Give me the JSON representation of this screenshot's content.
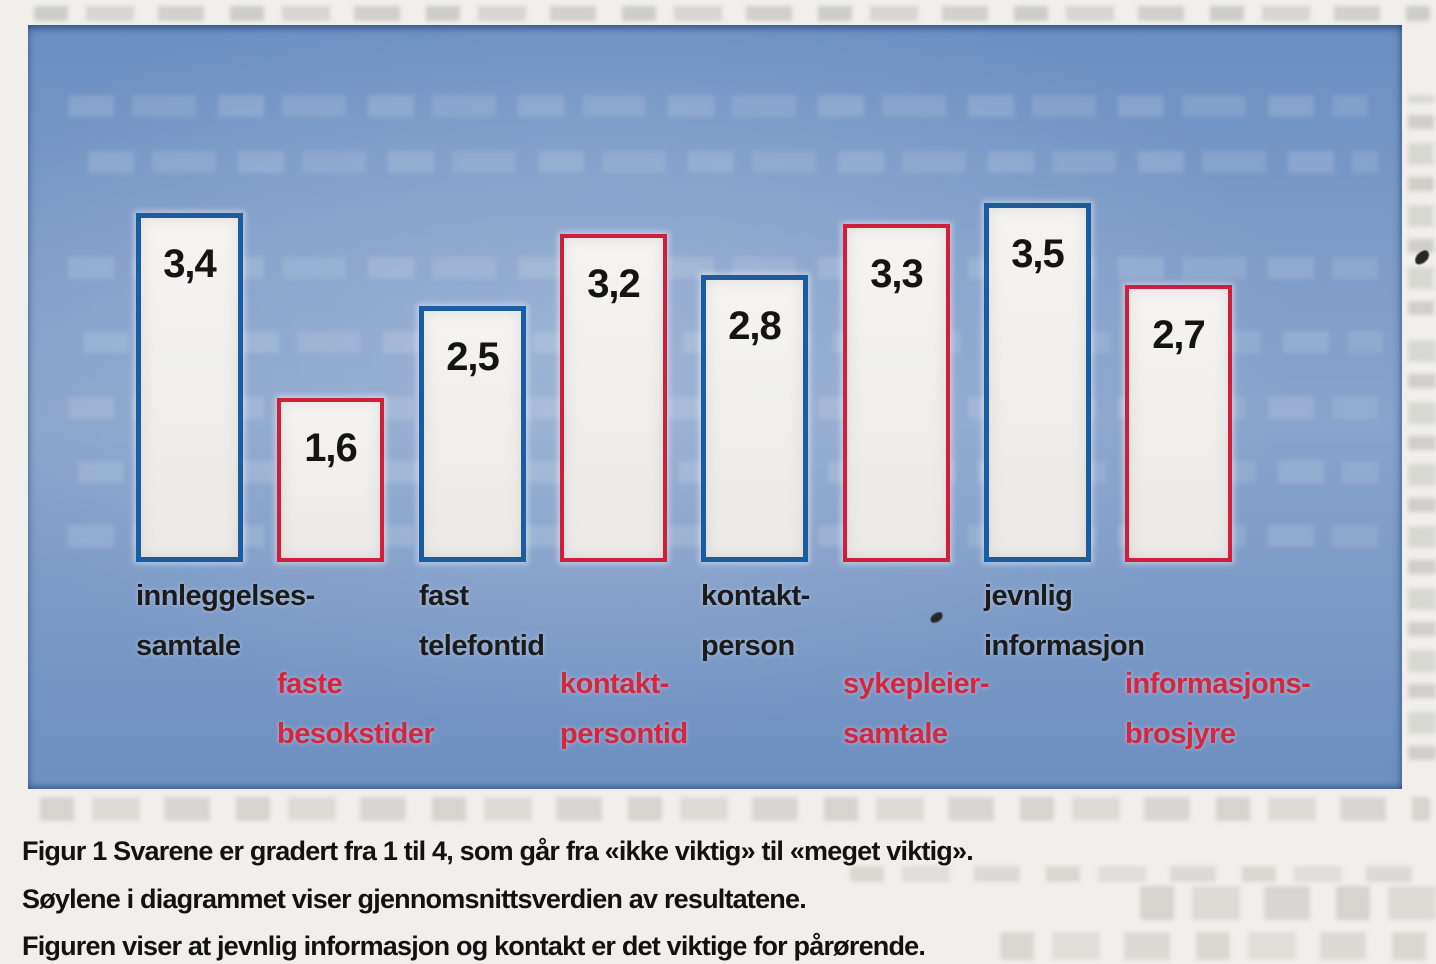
{
  "figure": {
    "colors": {
      "panel_background": "#7b99c6",
      "bar_fill": "#f1f0ed",
      "bar_border_blue": "#1b5ca1",
      "bar_border_red": "#d02039",
      "label_black": "#1b1b1b",
      "label_red": "#d6263e",
      "caption_text": "#121212"
    }
  },
  "chart_data": {
    "type": "bar",
    "title": "Figur 1",
    "ylim": [
      0,
      4
    ],
    "rating_scale": "1 til 4, fra «ikke viktig» til «meget viktig»",
    "grid": false,
    "axes_shown": false,
    "legend_position": "none",
    "categories": [
      "innleggelsessamtale",
      "faste besokstider",
      "fast telefontid",
      "kontaktpersontid",
      "kontaktperson",
      "sykepleiersamtale",
      "jevnlig informasjon",
      "informasjonsbrosjyre"
    ],
    "values": [
      3.4,
      1.6,
      2.5,
      3.2,
      2.8,
      3.3,
      3.5,
      2.7
    ],
    "bars": [
      {
        "label_lines": [
          "innleggelses-",
          "samtale"
        ],
        "value": 3.4,
        "display_value": "3,4",
        "border_color": "blue",
        "label_color": "black"
      },
      {
        "label_lines": [
          "faste",
          "besokstider"
        ],
        "value": 1.6,
        "display_value": "1,6",
        "border_color": "red",
        "label_color": "red"
      },
      {
        "label_lines": [
          "fast",
          "telefontid"
        ],
        "value": 2.5,
        "display_value": "2,5",
        "border_color": "blue",
        "label_color": "black"
      },
      {
        "label_lines": [
          "kontakt-",
          "persontid"
        ],
        "value": 3.2,
        "display_value": "3,2",
        "border_color": "red",
        "label_color": "red"
      },
      {
        "label_lines": [
          "kontakt-",
          "person"
        ],
        "value": 2.8,
        "display_value": "2,8",
        "border_color": "blue",
        "label_color": "black"
      },
      {
        "label_lines": [
          "sykepleier-",
          "samtale"
        ],
        "value": 3.3,
        "display_value": "3,3",
        "border_color": "red",
        "label_color": "red"
      },
      {
        "label_lines": [
          "jevnlig",
          "informasjon"
        ],
        "value": 3.5,
        "display_value": "3,5",
        "border_color": "blue",
        "label_color": "black"
      },
      {
        "label_lines": [
          "informasjons-",
          "brosjyre"
        ],
        "value": 2.7,
        "display_value": "2,7",
        "border_color": "red",
        "label_color": "red"
      }
    ]
  },
  "caption": {
    "line1": "Figur 1 Svarene er gradert fra 1 til 4, som går fra «ikke viktig» til «meget viktig».",
    "line2": "Søylene i diagrammet viser gjennomsnittsverdien av resultatene.",
    "line3": "Figuren viser at jevnlig informasjon og kontakt er det viktige for pårørende."
  }
}
